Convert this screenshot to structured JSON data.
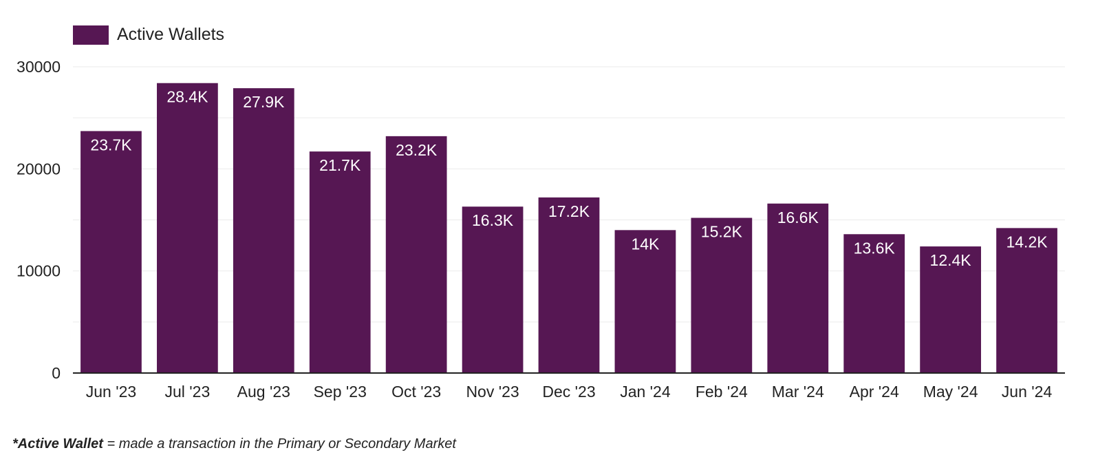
{
  "colors": {
    "bar": "#561753",
    "grid": "#ebebeb",
    "axis": "#222222"
  },
  "legend": {
    "label": "Active Wallets"
  },
  "footnote": {
    "term": "*Active Wallet",
    "text": " = made a transaction in the Primary or Secondary Market"
  },
  "chart_data": {
    "type": "bar",
    "categories": [
      "Jun '23",
      "Jul '23",
      "Aug '23",
      "Sep '23",
      "Oct '23",
      "Nov '23",
      "Dec '23",
      "Jan '24",
      "Feb '24",
      "Mar '24",
      "Apr '24",
      "May '24",
      "Jun '24"
    ],
    "series": [
      {
        "name": "Active Wallets",
        "values": [
          23700,
          28400,
          27900,
          21700,
          23200,
          16300,
          17200,
          14000,
          15200,
          16600,
          13600,
          12400,
          14200
        ],
        "labels": [
          "23.7K",
          "28.4K",
          "27.9K",
          "21.7K",
          "23.2K",
          "16.3K",
          "17.2K",
          "14K",
          "15.2K",
          "16.6K",
          "13.6K",
          "12.4K",
          "14.2K"
        ]
      }
    ],
    "yticks": [
      "0",
      "10000",
      "20000",
      "30000"
    ],
    "ylim": [
      0,
      30000
    ],
    "grid": true,
    "legend_position": "top-left",
    "title": "",
    "xlabel": "",
    "ylabel": ""
  }
}
